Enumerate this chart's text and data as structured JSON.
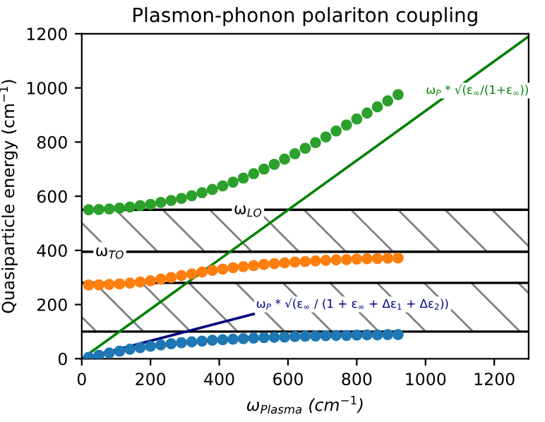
{
  "chart_data": {
    "type": "scatter",
    "title": "Plasmon-phonon polariton coupling",
    "xlabel": "ω$_{Plasma}$ (cm$^{−1}$)",
    "ylabel": "Quasiparticle energy (cm$^{−1}$)",
    "x": [
      20,
      50,
      80,
      110,
      140,
      170,
      200,
      230,
      260,
      290,
      320,
      350,
      380,
      410,
      440,
      470,
      500,
      530,
      560,
      590,
      620,
      650,
      680,
      710,
      740,
      770,
      800,
      830,
      860,
      890,
      920
    ],
    "series": [
      {
        "color": "#2ca02c",
        "values": [
          550,
          551,
          553,
          556,
          560,
          565,
          570,
          577,
          584,
          592,
          602,
          613,
          625,
          638,
          652,
          667,
          683,
          700,
          718,
          737,
          757,
          777,
          798,
          819,
          841,
          863,
          885,
          907,
          930,
          952,
          975
        ]
      },
      {
        "color": "#ff7f0e",
        "values": [
          272,
          273,
          274,
          276,
          279,
          283,
          288,
          294,
          300,
          307,
          313,
          320,
          326,
          331,
          336,
          340,
          344,
          348,
          351,
          354,
          357,
          359,
          361,
          363,
          365,
          366,
          368,
          369,
          370,
          371,
          372
        ]
      },
      {
        "color": "#1f77b4",
        "values": [
          5,
          13,
          21,
          28,
          35,
          41,
          46,
          51,
          55,
          59,
          62,
          65,
          68,
          70,
          72,
          74,
          76,
          78,
          79,
          80,
          82,
          83,
          84,
          85,
          86,
          86,
          87,
          88,
          88,
          89,
          89
        ]
      },
      {
        "type": "line",
        "marker": "none",
        "color": "#008000",
        "x": [
          0,
          1300
        ],
        "values": [
          0,
          1190
        ]
      },
      {
        "type": "line",
        "marker": "none",
        "color": "#000080",
        "x": [
          0,
          500
        ],
        "values": [
          0,
          165
        ]
      }
    ],
    "marker": "circle",
    "ref_lines": [
      {
        "axis": "y",
        "value": 550,
        "label": "ω$_{LO}$",
        "color": "#000000"
      },
      {
        "axis": "y",
        "value": 395,
        "label": "ω$_{TO}$",
        "color": "#000000"
      },
      {
        "axis": "y",
        "value": 280,
        "label": null,
        "color": "#000000"
      },
      {
        "axis": "y",
        "value": 100,
        "label": null,
        "color": "#000000"
      }
    ],
    "bands": [
      {
        "axis": "y",
        "from": 395,
        "to": 550,
        "label": null,
        "color": "#808080"
      },
      {
        "axis": "y",
        "from": 100,
        "to": 280,
        "label": null,
        "color": "#808080"
      }
    ],
    "annotations": [
      "ω$_{P}$ * √(ε$_{∞}$/(1+ε$_{∞}$))",
      "ω$_{P}$ * √(ε$_{∞}$ / (1 + ε$_{∞}$ + Δε$_{1}$ + Δε$_{2}$))"
    ],
    "xlim": [
      0,
      1300
    ],
    "ylim": [
      0,
      1200
    ],
    "xticks": [
      0,
      200,
      400,
      600,
      800,
      1000,
      1200
    ],
    "yticks": [
      0,
      200,
      400,
      600,
      800,
      1000,
      1200
    ],
    "grid": false
  }
}
